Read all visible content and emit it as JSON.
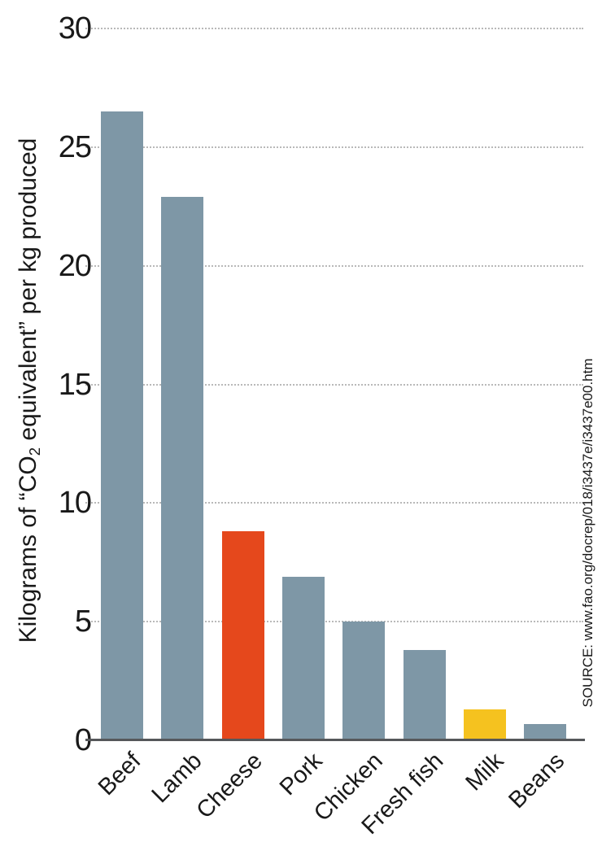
{
  "colors": {
    "bar_default": "#7e97a6",
    "bar_highlight_cheese": "#e5481c",
    "bar_highlight_milk": "#f5c21f",
    "axis": "#55575a",
    "gridline": "#b9b9b9",
    "text": "#191919"
  },
  "y_axis": {
    "label_prefix": "Kilograms of “CO",
    "label_subscript": "2",
    "label_suffix": " equivalent” per kg produced"
  },
  "source_note": "SOURCE: www.fao.org/docrep/018/i3437e/i3437e00.htm",
  "chart_data": {
    "type": "bar",
    "title": "",
    "xlabel": "",
    "ylabel": "Kilograms of “CO2 equivalent” per kg produced",
    "categories": [
      "Beef",
      "Lamb",
      "Cheese",
      "Pork",
      "Chicken",
      "Fresh fish",
      "Milk",
      "Beans"
    ],
    "values": [
      26.5,
      22.9,
      8.8,
      6.9,
      5.0,
      3.8,
      1.3,
      0.7
    ],
    "bar_colors": [
      "#7e97a6",
      "#7e97a6",
      "#e5481c",
      "#7e97a6",
      "#7e97a6",
      "#7e97a6",
      "#f5c21f",
      "#7e97a6"
    ],
    "yticks": [
      0,
      5,
      10,
      15,
      20,
      25,
      30
    ],
    "ylim": [
      0,
      30
    ],
    "grid": "horizontal-dotted",
    "legend_position": "none",
    "source": "SOURCE: www.fao.org/docrep/018/i3437e/i3437e00.htm"
  }
}
